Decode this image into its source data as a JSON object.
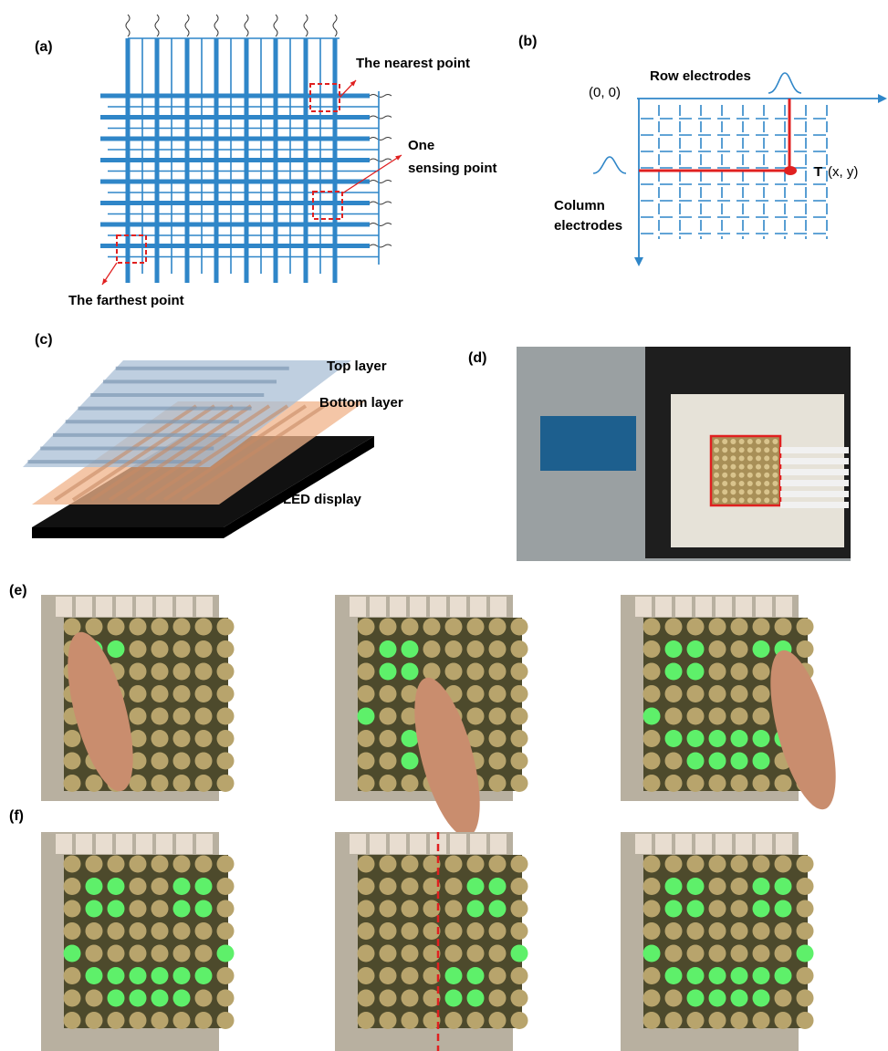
{
  "panels": {
    "a": {
      "label": "(a)",
      "nearest": "The nearest point",
      "sensing": [
        "One",
        "sensing point"
      ],
      "farthest": "The farthest point"
    },
    "b": {
      "label": "(b)",
      "row": "Row electrodes",
      "origin": "(0, 0)",
      "point_letter": "T",
      "point_coords": "(x, y)",
      "column": [
        "Column",
        "electrodes"
      ]
    },
    "c": {
      "label": "(c)",
      "top": "Top layer",
      "bottom": "Bottom layer",
      "led": "LED display"
    },
    "d": {
      "label": "(d)"
    },
    "e": {
      "label": "(e)"
    },
    "f": {
      "label": "(f)"
    }
  }
}
